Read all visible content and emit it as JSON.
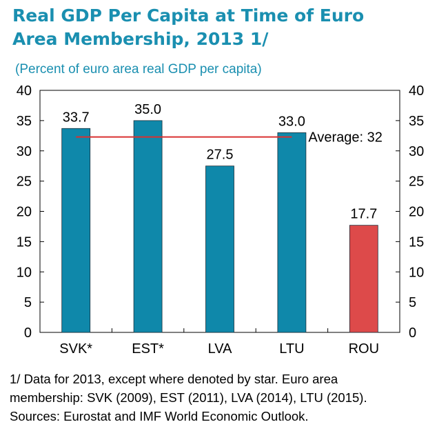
{
  "title_line1": "Real GDP Per Capita at Time of Euro",
  "title_line2": "Area Membership, 2013  1/",
  "subtitle": "(Percent of euro area real GDP per capita)",
  "chart_data": {
    "type": "bar",
    "title": "Real GDP Per Capita at Time of Euro Area Membership, 2013  1/",
    "subtitle": "(Percent of euro area real GDP per capita)",
    "categories": [
      "SVK*",
      "EST*",
      "LVA",
      "LTU",
      "ROU"
    ],
    "values": [
      33.7,
      35.0,
      27.5,
      33.0,
      17.7
    ],
    "value_labels": [
      "33.7",
      "35.0",
      "27.5",
      "33.0",
      "17.7"
    ],
    "bar_colors": [
      "#0f88aa",
      "#0f88aa",
      "#0f88aa",
      "#0f88aa",
      "#dd4a4a"
    ],
    "ylim": [
      0,
      40
    ],
    "yticks": [
      0,
      5,
      10,
      15,
      20,
      25,
      30,
      35,
      40
    ],
    "right_axis": true,
    "grid": false,
    "average": {
      "value": 32.3,
      "label": "Average: 32",
      "color": "#d93030",
      "span": [
        "SVK*",
        "LTU"
      ]
    }
  },
  "footnotes": [
    "1/ Data for 2013, except where denoted by star. Euro area",
    "membership: SVK (2009), EST (2011), LVA (2014), LTU (2015).",
    "Sources: Eurostat and IMF World Economic Outlook."
  ]
}
